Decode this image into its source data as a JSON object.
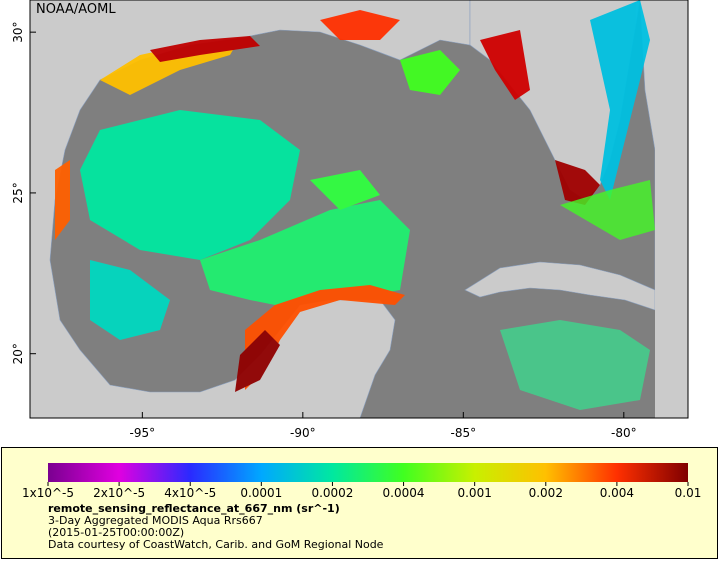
{
  "watermark": "NOAA/AOML",
  "map": {
    "lonlim": [
      -98.5,
      -78
    ],
    "latlim": [
      18,
      31
    ],
    "lon_ticks": [
      {
        "value": -95,
        "label": "-95°"
      },
      {
        "value": -90,
        "label": "-90°"
      },
      {
        "value": -85,
        "label": "-85°"
      },
      {
        "value": -80,
        "label": "-80°"
      }
    ],
    "lat_ticks": [
      {
        "value": 20,
        "label": "20°"
      },
      {
        "value": 25,
        "label": "25°"
      },
      {
        "value": 30,
        "label": "30°"
      }
    ]
  },
  "colorbar": {
    "scale": "log",
    "ticks": [
      {
        "value": 1e-05,
        "label": "1x10^-5"
      },
      {
        "value": 2e-05,
        "label": "2x10^-5"
      },
      {
        "value": 4e-05,
        "label": "4x10^-5"
      },
      {
        "value": 0.0001,
        "label": "0.0001"
      },
      {
        "value": 0.0002,
        "label": "0.0002"
      },
      {
        "value": 0.0004,
        "label": "0.0004"
      },
      {
        "value": 0.001,
        "label": "0.001"
      },
      {
        "value": 0.002,
        "label": "0.002"
      },
      {
        "value": 0.004,
        "label": "0.004"
      },
      {
        "value": 0.01,
        "label": "0.01"
      }
    ],
    "colors": [
      "#7a0090",
      "#e000e0",
      "#2a2aff",
      "#00a8ff",
      "#00e8a0",
      "#40ff20",
      "#c8f000",
      "#ffc000",
      "#ff3000",
      "#800000"
    ]
  },
  "legend": {
    "variable": "remote_sensing_reflectance_at_667_nm (sr^-1)",
    "lines": [
      "3-Day Aggregated MODIS Aqua Rrs667",
      "(2015-01-25T00:00:00Z)",
      "Data courtesy of CoastWatch, Carib. and GoM Regional Node"
    ]
  }
}
